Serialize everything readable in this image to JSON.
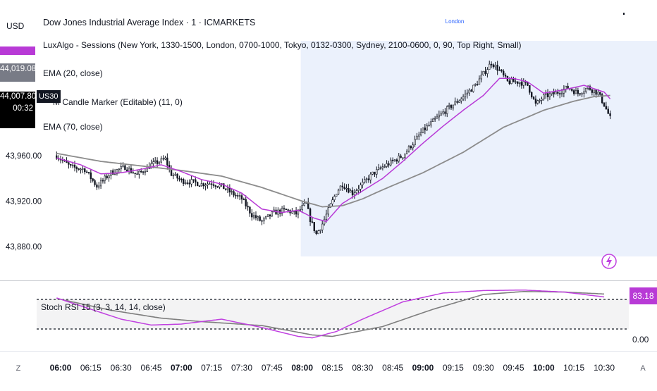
{
  "header": {
    "currency": "USD",
    "title": "Dow Jones Industrial Average Index · 1 · ICMARKETS",
    "dot": "·"
  },
  "indicators": [
    "LuxAlgo - Sessions (New York, 1330-1500, London, 0700-1000, Tokyo, 0132-0300, Sydney, 2100-0600, 0, 90, Top Right, Small)",
    "EMA (20, close)",
    "M Candle Marker (Editable) (11, 0)",
    "EMA (70, close)"
  ],
  "session_label": "London",
  "price_tags": {
    "ema20": "44,019.08",
    "last": "44,007.80",
    "countdown": "00:32",
    "symbol": "US30"
  },
  "oscillator": {
    "label": "Stoch RSI 15 (3, 3, 14, 14, close)",
    "value_tag": "83.18",
    "bottom_label": "0.00"
  },
  "corner": {
    "left": "Z",
    "right": "A"
  },
  "colors": {
    "ema20": "#b83ad6",
    "ema70": "#8c8c8c",
    "candle": "#131722",
    "session_fill": "#e8eefc",
    "stoch_k": "#c040e0",
    "stoch_d": "#7e7e7e"
  },
  "chart_data": [
    {
      "type": "candlestick",
      "title": "Dow Jones Industrial Average Index · 1 · ICMARKETS",
      "y_ticks": [
        "43,960.00",
        "43,920.00",
        "43,880.00"
      ],
      "y_tick_values": [
        43960,
        43920,
        43880
      ],
      "ylim": [
        43860,
        44060
      ],
      "x_ticks": [
        "06:00",
        "06:15",
        "06:30",
        "06:45",
        "07:00",
        "07:15",
        "07:30",
        "07:45",
        "08:00",
        "08:15",
        "08:30",
        "08:45",
        "09:00",
        "09:15",
        "09:30",
        "09:45",
        "10:00",
        "10:15",
        "10:30"
      ],
      "bold_x_ticks": [
        "06:00",
        "07:00",
        "08:00",
        "09:00",
        "10:00"
      ],
      "session": {
        "name": "London",
        "start_min": 120,
        "end_min": 300
      },
      "close_anchors": [
        [
          -2,
          43960
        ],
        [
          5,
          43950
        ],
        [
          12,
          43948
        ],
        [
          18,
          43933
        ],
        [
          25,
          43945
        ],
        [
          32,
          43950
        ],
        [
          38,
          43943
        ],
        [
          45,
          43952
        ],
        [
          52,
          43957
        ],
        [
          55,
          43944
        ],
        [
          60,
          43938
        ],
        [
          65,
          43937
        ],
        [
          70,
          43935
        ],
        [
          75,
          43936
        ],
        [
          80,
          43933
        ],
        [
          85,
          43927
        ],
        [
          90,
          43922
        ],
        [
          95,
          43908
        ],
        [
          100,
          43902
        ],
        [
          106,
          43910
        ],
        [
          112,
          43912
        ],
        [
          117,
          43909
        ],
        [
          122,
          43918
        ],
        [
          124,
          43904
        ],
        [
          127,
          43891
        ],
        [
          130,
          43900
        ],
        [
          133,
          43912
        ],
        [
          137,
          43928
        ],
        [
          140,
          43935
        ],
        [
          145,
          43927
        ],
        [
          150,
          43935
        ],
        [
          155,
          43944
        ],
        [
          160,
          43950
        ],
        [
          170,
          43960
        ],
        [
          180,
          43982
        ],
        [
          190,
          43998
        ],
        [
          200,
          44012
        ],
        [
          206,
          44022
        ],
        [
          210,
          44032
        ],
        [
          214,
          44042
        ],
        [
          218,
          44035
        ],
        [
          222,
          44025
        ],
        [
          228,
          44025
        ],
        [
          232,
          44022
        ],
        [
          236,
          44005
        ],
        [
          240,
          44012
        ],
        [
          246,
          44015
        ],
        [
          252,
          44020
        ],
        [
          257,
          44015
        ],
        [
          262,
          44020
        ],
        [
          267,
          44015
        ],
        [
          270,
          44005
        ],
        [
          273,
          43993
        ]
      ],
      "ema20": [
        [
          -2,
          43958
        ],
        [
          10,
          43952
        ],
        [
          20,
          43944
        ],
        [
          30,
          43945
        ],
        [
          40,
          43948
        ],
        [
          50,
          43952
        ],
        [
          60,
          43946
        ],
        [
          70,
          43939
        ],
        [
          80,
          43935
        ],
        [
          90,
          43927
        ],
        [
          100,
          43913
        ],
        [
          110,
          43910
        ],
        [
          118,
          43912
        ],
        [
          126,
          43905
        ],
        [
          132,
          43902
        ],
        [
          140,
          43918
        ],
        [
          150,
          43929
        ],
        [
          160,
          43940
        ],
        [
          170,
          43955
        ],
        [
          180,
          43971
        ],
        [
          190,
          43986
        ],
        [
          200,
          44000
        ],
        [
          210,
          44013
        ],
        [
          218,
          44028
        ],
        [
          225,
          44028
        ],
        [
          232,
          44025
        ],
        [
          240,
          44015
        ],
        [
          250,
          44018
        ],
        [
          260,
          44022
        ],
        [
          270,
          44016
        ],
        [
          273,
          44010
        ]
      ],
      "ema70": [
        [
          -2,
          43962
        ],
        [
          20,
          43955
        ],
        [
          40,
          43951
        ],
        [
          60,
          43947
        ],
        [
          80,
          43942
        ],
        [
          100,
          43932
        ],
        [
          120,
          43920
        ],
        [
          130,
          43915
        ],
        [
          140,
          43916
        ],
        [
          150,
          43922
        ],
        [
          160,
          43930
        ],
        [
          180,
          43945
        ],
        [
          200,
          43963
        ],
        [
          220,
          43985
        ],
        [
          240,
          44000
        ],
        [
          255,
          44008
        ],
        [
          265,
          44012
        ],
        [
          273,
          44013
        ]
      ]
    },
    {
      "type": "line",
      "title": "Stoch RSI 15 (3, 3, 14, 14, close)",
      "y_ticks": [
        "0.00"
      ],
      "levels": [
        80,
        20
      ],
      "ylim": [
        -14,
        108
      ],
      "series": [
        {
          "name": "K",
          "points": [
            [
              -2,
              83
            ],
            [
              30,
              40
            ],
            [
              45,
              28
            ],
            [
              60,
              30
            ],
            [
              80,
              40
            ],
            [
              100,
              23
            ],
            [
              118,
              5
            ],
            [
              125,
              2
            ],
            [
              137,
              15
            ],
            [
              150,
              40
            ],
            [
              170,
              75
            ],
            [
              190,
              93
            ],
            [
              210,
              98
            ],
            [
              230,
              99
            ],
            [
              250,
              95
            ],
            [
              270,
              85
            ]
          ]
        },
        {
          "name": "D",
          "points": [
            [
              -2,
              82
            ],
            [
              25,
              58
            ],
            [
              50,
              42
            ],
            [
              70,
              35
            ],
            [
              100,
              27
            ],
            [
              125,
              8
            ],
            [
              135,
              5
            ],
            [
              160,
              25
            ],
            [
              185,
              60
            ],
            [
              210,
              90
            ],
            [
              230,
              96
            ],
            [
              250,
              95
            ],
            [
              270,
              91
            ]
          ]
        }
      ]
    }
  ]
}
